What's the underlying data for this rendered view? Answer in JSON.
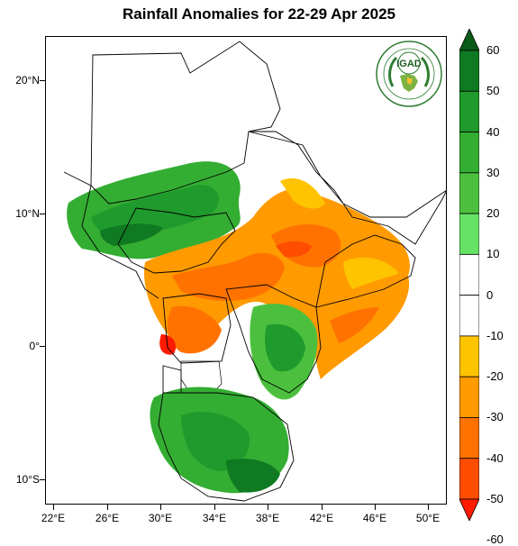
{
  "title": "Rainfall Anomalies for 22-29 Apr 2025",
  "map": {
    "type": "choropleth-rainfall-anomaly",
    "region": "Greater Horn of Africa",
    "lon_range": [
      21,
      51
    ],
    "lat_range": [
      -12,
      23
    ],
    "lat_ticks": [
      {
        "value": 20,
        "label": "20°N"
      },
      {
        "value": 10,
        "label": "10°N"
      },
      {
        "value": 0,
        "label": "0°"
      },
      {
        "value": -10,
        "label": "10°S"
      }
    ],
    "lon_ticks": [
      {
        "value": 22,
        "label": "22°E"
      },
      {
        "value": 26,
        "label": "26°E"
      },
      {
        "value": 30,
        "label": "30°E"
      },
      {
        "value": 34,
        "label": "34°E"
      },
      {
        "value": 38,
        "label": "38°E"
      },
      {
        "value": 42,
        "label": "42°E"
      },
      {
        "value": 46,
        "label": "46°E"
      },
      {
        "value": 50,
        "label": "50°E"
      }
    ]
  },
  "colorbar": {
    "labels": [
      "60",
      "50",
      "40",
      "30",
      "20",
      "10",
      "0",
      "-10",
      "-20",
      "-30",
      "-40",
      "-50",
      "-60"
    ],
    "bins": [
      {
        "range": ">60",
        "color": "#0a5a1a"
      },
      {
        "range": "50 to 60",
        "color": "#0f7a22"
      },
      {
        "range": "40 to 50",
        "color": "#1f9a2c"
      },
      {
        "range": "30 to 40",
        "color": "#34ad33"
      },
      {
        "range": "20 to 30",
        "color": "#4cc03e"
      },
      {
        "range": "10 to 20",
        "color": "#66e366"
      },
      {
        "range": "0 to 10",
        "color": "#ffffff"
      },
      {
        "range": "-10 to 0",
        "color": "#ffffff"
      },
      {
        "range": "-20 to -10",
        "color": "#ffc400"
      },
      {
        "range": "-30 to -20",
        "color": "#ff9a00"
      },
      {
        "range": "-40 to -30",
        "color": "#ff7200"
      },
      {
        "range": "-50 to -40",
        "color": "#ff4d00"
      },
      {
        "range": "<-60",
        "color": "#ff1a00"
      }
    ]
  },
  "logo": {
    "text": "IGAD",
    "name": "igad-logo"
  }
}
